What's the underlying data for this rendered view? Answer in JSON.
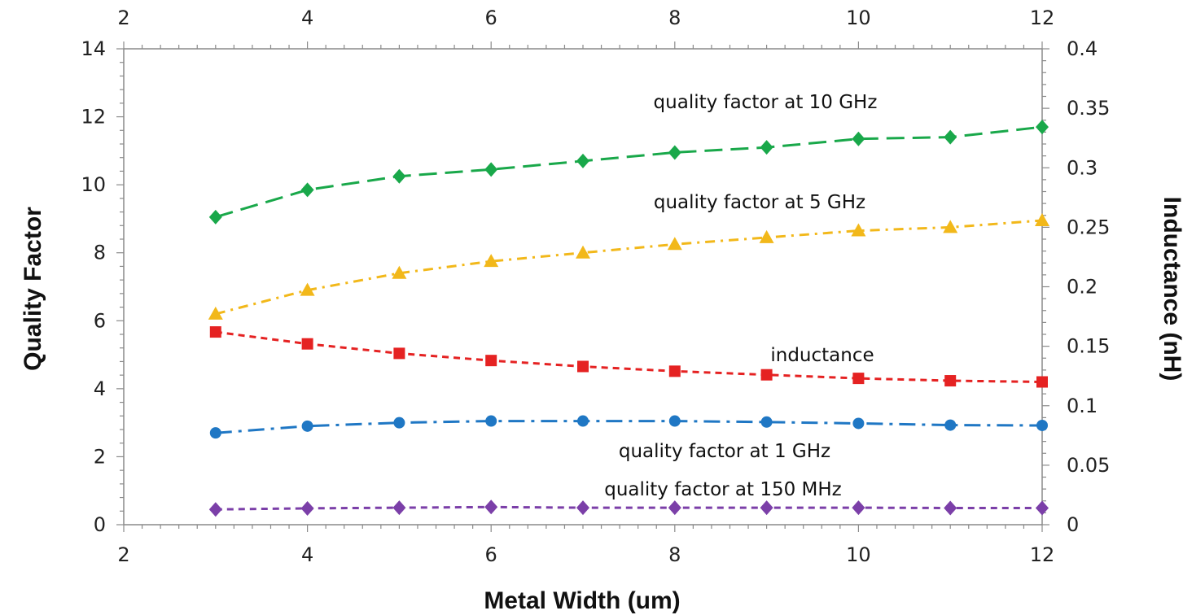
{
  "chart_data": {
    "type": "line",
    "title": "",
    "xlabel": "Metal Width (um)",
    "ylabel": "Quality Factor",
    "y2label": "Inductance (nH)",
    "xlim": [
      2,
      12
    ],
    "ylim": [
      0,
      14
    ],
    "y2lim": [
      0,
      0.4
    ],
    "x_ticks": [
      "2",
      "4",
      "6",
      "8",
      "10",
      "12"
    ],
    "y_ticks": [
      "0",
      "2",
      "4",
      "6",
      "8",
      "10",
      "12",
      "14"
    ],
    "y2_ticks": [
      "0",
      "0.05",
      "0.1",
      "0.15",
      "0.2",
      "0.25",
      "0.3",
      "0.35",
      "0.4"
    ],
    "grid": false,
    "legend": "none",
    "x": [
      3,
      4,
      5,
      6,
      7,
      8,
      9,
      10,
      11,
      12
    ],
    "series": [
      {
        "label": "quality factor at 10 GHz",
        "axis": "left",
        "color": "#19a84a",
        "marker": "diamond",
        "dash": "long-dash",
        "values": [
          9.05,
          9.85,
          10.25,
          10.45,
          10.7,
          10.95,
          11.1,
          11.35,
          11.4,
          11.7
        ]
      },
      {
        "label": "quality factor at 5 GHz",
        "axis": "left",
        "color": "#f2b81a",
        "marker": "triangle",
        "dash": "dash-dot",
        "values": [
          6.2,
          6.9,
          7.4,
          7.75,
          8.0,
          8.25,
          8.45,
          8.65,
          8.75,
          8.95
        ]
      },
      {
        "label": "inductance",
        "axis": "right",
        "color": "#e52222",
        "marker": "square",
        "dash": "short-dash",
        "values": [
          0.162,
          0.152,
          0.144,
          0.138,
          0.133,
          0.129,
          0.126,
          0.123,
          0.121,
          0.12
        ]
      },
      {
        "label": "quality factor at 1 GHz",
        "axis": "left",
        "color": "#1f77c4",
        "marker": "circle",
        "dash": "long-dash-dot",
        "values": [
          2.7,
          2.9,
          3.0,
          3.05,
          3.05,
          3.05,
          3.02,
          2.98,
          2.93,
          2.92
        ]
      },
      {
        "label": "quality factor at 150 MHz",
        "axis": "left",
        "color": "#7b3fa8",
        "marker": "diamond",
        "dash": "short-dash",
        "values": [
          0.45,
          0.48,
          0.5,
          0.52,
          0.5,
          0.5,
          0.5,
          0.5,
          0.49,
          0.49
        ]
      }
    ]
  }
}
